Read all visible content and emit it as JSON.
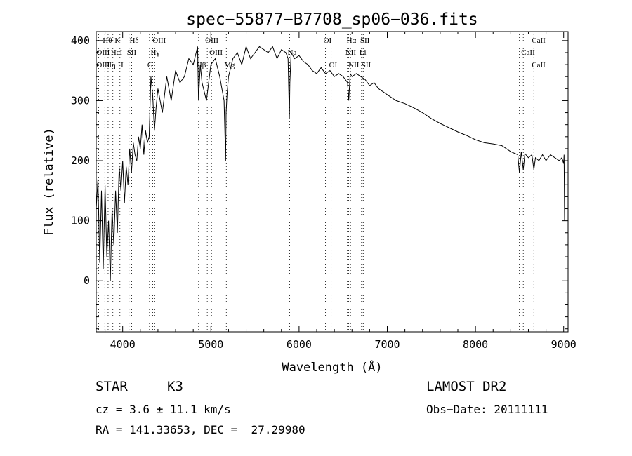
{
  "chart_data": {
    "type": "line",
    "title": "spec−55877−B7708_sp06−036.fits",
    "xlabel": "Wavelength (Å)",
    "ylabel": "Flux (relative)",
    "xlim": [
      3700,
      9050
    ],
    "ylim": [
      -85,
      415
    ],
    "xticks": [
      4000,
      5000,
      6000,
      7000,
      8000,
      9000
    ],
    "yticks": [
      0,
      100,
      200,
      300,
      400
    ],
    "grid": false,
    "series": [
      {
        "x": [
          3700,
          3720,
          3740,
          3760,
          3780,
          3800,
          3820,
          3840,
          3860,
          3880,
          3900,
          3920,
          3940,
          3960,
          3980,
          4000,
          4020,
          4040,
          4060,
          4080,
          4100,
          4120,
          4140,
          4160,
          4180,
          4200,
          4220,
          4240,
          4260,
          4280,
          4300,
          4320,
          4340,
          4360,
          4380,
          4400,
          4450,
          4500,
          4550,
          4600,
          4650,
          4700,
          4750,
          4800,
          4850,
          4860,
          4880,
          4900,
          4950,
          5000,
          5050,
          5100,
          5150,
          5167,
          5173,
          5183,
          5200,
          5250,
          5300,
          5350,
          5400,
          5450,
          5500,
          5550,
          5600,
          5650,
          5700,
          5750,
          5800,
          5850,
          5875,
          5890,
          5896,
          5910,
          5950,
          6000,
          6050,
          6100,
          6150,
          6200,
          6250,
          6300,
          6350,
          6400,
          6450,
          6500,
          6550,
          6563,
          6580,
          6600,
          6650,
          6700,
          6750,
          6800,
          6850,
          6900,
          6950,
          7000,
          7100,
          7200,
          7300,
          7400,
          7500,
          7600,
          7700,
          7800,
          7900,
          8000,
          8100,
          8200,
          8300,
          8400,
          8480,
          8498,
          8520,
          8542,
          8560,
          8600,
          8640,
          8662,
          8680,
          8720,
          8760,
          8800,
          8850,
          8900,
          8950,
          8980,
          9000,
          9005,
          9010
        ],
        "y": [
          120,
          170,
          30,
          150,
          20,
          160,
          40,
          100,
          0,
          120,
          60,
          150,
          80,
          190,
          150,
          200,
          130,
          190,
          160,
          220,
          180,
          230,
          210,
          200,
          240,
          220,
          260,
          210,
          250,
          230,
          240,
          340,
          310,
          250,
          290,
          320,
          280,
          340,
          300,
          350,
          330,
          340,
          370,
          360,
          390,
          300,
          360,
          330,
          300,
          360,
          370,
          340,
          300,
          200,
          280,
          310,
          340,
          370,
          380,
          360,
          390,
          370,
          380,
          390,
          385,
          380,
          390,
          370,
          385,
          380,
          370,
          270,
          330,
          380,
          370,
          375,
          365,
          360,
          350,
          345,
          355,
          345,
          350,
          340,
          345,
          340,
          330,
          300,
          345,
          340,
          345,
          340,
          335,
          325,
          330,
          320,
          315,
          310,
          300,
          295,
          288,
          280,
          270,
          262,
          255,
          248,
          242,
          235,
          230,
          228,
          225,
          215,
          210,
          180,
          215,
          185,
          212,
          205,
          210,
          185,
          205,
          200,
          210,
          200,
          210,
          205,
          200,
          205,
          195,
          210,
          100
        ]
      }
    ],
    "line_labels": [
      {
        "label": "Hθ",
        "x": 3798,
        "row": 0
      },
      {
        "label": "OIII",
        "x": 3727,
        "row": 1
      },
      {
        "label": "OIII",
        "x": 3727,
        "row": 2
      },
      {
        "label": "K",
        "x": 3934,
        "row": 0
      },
      {
        "label": "HeI",
        "x": 3889,
        "row": 1
      },
      {
        "label": "Hη",
        "x": 3835,
        "row": 2
      },
      {
        "label": "H",
        "x": 3969,
        "row": 2
      },
      {
        "label": "SII",
        "x": 4072,
        "row": 1
      },
      {
        "label": "Hδ",
        "x": 4102,
        "row": 0
      },
      {
        "label": "OIII",
        "x": 4363,
        "row": 0
      },
      {
        "label": "Hγ",
        "x": 4341,
        "row": 1
      },
      {
        "label": "G",
        "x": 4304,
        "row": 2
      },
      {
        "label": "OIII",
        "x": 4959,
        "row": 0
      },
      {
        "label": "OIII",
        "x": 5007,
        "row": 1
      },
      {
        "label": "Hβ",
        "x": 4861,
        "row": 2
      },
      {
        "label": "Mg",
        "x": 5175,
        "row": 2
      },
      {
        "label": "Na",
        "x": 5893,
        "row": 1
      },
      {
        "label": "OI",
        "x": 6300,
        "row": 0
      },
      {
        "label": "OI",
        "x": 6364,
        "row": 2
      },
      {
        "label": "Hα",
        "x": 6563,
        "row": 0
      },
      {
        "label": "SII",
        "x": 6716,
        "row": 0
      },
      {
        "label": "NII",
        "x": 6548,
        "row": 1
      },
      {
        "label": "Li",
        "x": 6708,
        "row": 1
      },
      {
        "label": "NII",
        "x": 6583,
        "row": 2
      },
      {
        "label": "SII",
        "x": 6731,
        "row": 2
      },
      {
        "label": "CaII",
        "x": 8662,
        "row": 0
      },
      {
        "label": "CaII",
        "x": 8542,
        "row": 1
      },
      {
        "label": "CaII",
        "x": 8662,
        "row": 2
      }
    ],
    "line_markers": [
      3727,
      3798,
      3835,
      3889,
      3934,
      3969,
      4072,
      4102,
      4304,
      4341,
      4363,
      4861,
      4959,
      5007,
      5175,
      5893,
      6300,
      6364,
      6548,
      6563,
      6583,
      6708,
      6716,
      6731,
      8498,
      8542,
      8662
    ]
  },
  "info": {
    "object_type": "STAR",
    "subclass": "K3",
    "survey": "LAMOST DR2",
    "cz": "cz = 3.6 ± 11.1 km/s",
    "obs_date": "Obs−Date: 20111111",
    "coords": "RA = 141.33653, DEC =  27.29980"
  }
}
